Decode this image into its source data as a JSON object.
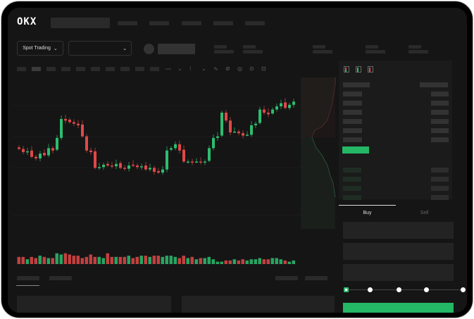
{
  "brand": {
    "logo": "OKX"
  },
  "toolbar": {
    "market_select": "Spot Trading",
    "pair_select": ""
  },
  "orderbook": {
    "view_icons": [
      "orderbook-both-icon",
      "orderbook-bids-icon",
      "orderbook-asks-icon"
    ]
  },
  "trade": {
    "tabs": [
      "Buy",
      "Sell"
    ],
    "active_tab": "Buy",
    "slider_value_percent": 0,
    "slider_steps": [
      0,
      25,
      50,
      75,
      100
    ]
  },
  "colors": {
    "up": "#2dbd6e",
    "down": "#e04848",
    "background": "#151515"
  },
  "chart_data": {
    "type": "candlestick",
    "closes": [
      54,
      50,
      51,
      44,
      42,
      48,
      46,
      55,
      52,
      68,
      92,
      90,
      88,
      86,
      84,
      70,
      52,
      50,
      30,
      31,
      34,
      33,
      32,
      35,
      30,
      29,
      33,
      33,
      31,
      32,
      28,
      30,
      25,
      24,
      28,
      52,
      55,
      60,
      52,
      38,
      38,
      37,
      38,
      37,
      38,
      55,
      68,
      70,
      100,
      90,
      75,
      76,
      74,
      71,
      72,
      84,
      86,
      104,
      100,
      98,
      104,
      108,
      112,
      106,
      110,
      114
    ],
    "volumes": [
      6,
      6,
      4,
      6,
      5,
      7,
      6,
      5,
      5,
      9,
      8,
      9,
      8,
      7,
      7,
      5,
      6,
      8,
      6,
      6,
      5,
      9,
      6,
      6,
      6,
      6,
      7,
      5,
      6,
      7,
      7,
      6,
      7,
      7,
      6,
      7,
      7,
      6,
      5,
      7,
      5,
      6,
      4,
      5,
      5,
      6,
      4,
      2,
      2,
      3,
      3,
      4,
      3,
      4,
      3,
      4,
      4,
      5,
      4,
      4,
      5,
      5,
      4,
      3,
      2,
      3
    ]
  }
}
